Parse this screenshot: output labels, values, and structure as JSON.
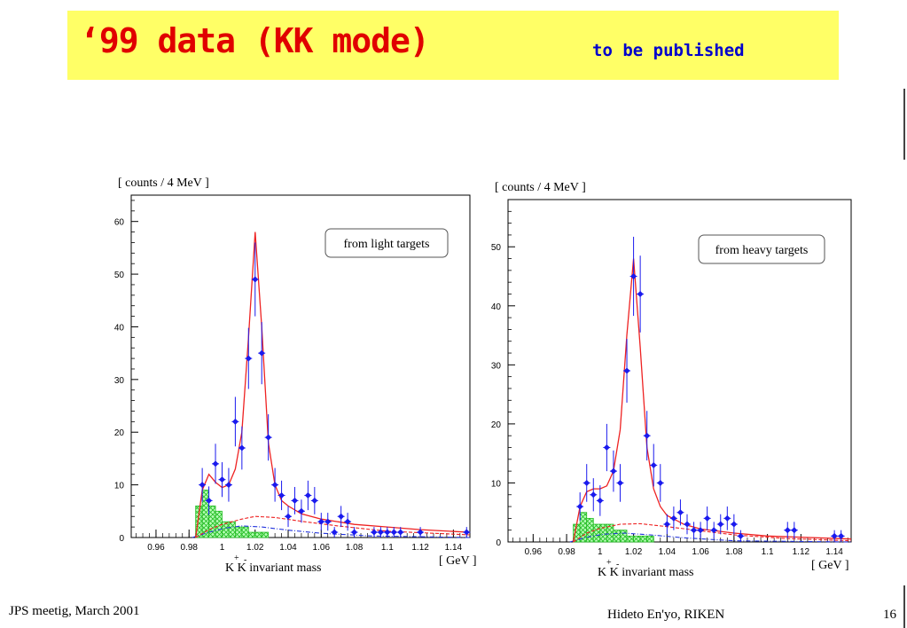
{
  "slide": {
    "title": "‘99 data (KK mode)",
    "subtitle": "to be published",
    "footer_left": "JPS meetig, March 2001",
    "footer_center": "Hideto En'yo, RIKEN",
    "page_number": "16"
  },
  "chart_data": [
    {
      "type": "scatter",
      "ylabel": "[ counts / 4 MeV ]",
      "xlabel": "K+K- invariant mass",
      "xlabel_main": "K K invariant mass",
      "xlabel_sup_plus": "+",
      "xlabel_sup_minus": "-",
      "xunit": "[ GeV ]",
      "annotation": "from  light targets",
      "xlim": [
        0.945,
        1.15
      ],
      "ylim": [
        0,
        65
      ],
      "x_ticks": [
        "0.96",
        "0.98",
        "1",
        "1.02",
        "1.04",
        "1.06",
        "1.08",
        "1.1",
        "1.12",
        "1.14"
      ],
      "y_ticks": [
        "0",
        "10",
        "20",
        "30",
        "40",
        "50",
        "60"
      ],
      "points": [
        {
          "x": 0.988,
          "y": 10,
          "err": 3.2
        },
        {
          "x": 0.992,
          "y": 7,
          "err": 2.7
        },
        {
          "x": 0.996,
          "y": 14,
          "err": 3.8
        },
        {
          "x": 1.0,
          "y": 11,
          "err": 3.3
        },
        {
          "x": 1.004,
          "y": 10,
          "err": 3.2
        },
        {
          "x": 1.008,
          "y": 22,
          "err": 4.7
        },
        {
          "x": 1.012,
          "y": 17,
          "err": 4.1
        },
        {
          "x": 1.016,
          "y": 34,
          "err": 5.8
        },
        {
          "x": 1.02,
          "y": 49,
          "err": 7.0
        },
        {
          "x": 1.024,
          "y": 35,
          "err": 5.9
        },
        {
          "x": 1.028,
          "y": 19,
          "err": 4.4
        },
        {
          "x": 1.032,
          "y": 10,
          "err": 3.2
        },
        {
          "x": 1.036,
          "y": 8,
          "err": 2.8
        },
        {
          "x": 1.04,
          "y": 4,
          "err": 2.0
        },
        {
          "x": 1.044,
          "y": 7,
          "err": 2.6
        },
        {
          "x": 1.048,
          "y": 5,
          "err": 2.2
        },
        {
          "x": 1.052,
          "y": 8,
          "err": 2.8
        },
        {
          "x": 1.056,
          "y": 7,
          "err": 2.6
        },
        {
          "x": 1.06,
          "y": 3,
          "err": 1.7
        },
        {
          "x": 1.064,
          "y": 3,
          "err": 1.7
        },
        {
          "x": 1.068,
          "y": 1,
          "err": 1.0
        },
        {
          "x": 1.072,
          "y": 4,
          "err": 2.0
        },
        {
          "x": 1.076,
          "y": 3,
          "err": 1.7
        },
        {
          "x": 1.08,
          "y": 1,
          "err": 1.0
        },
        {
          "x": 1.092,
          "y": 1,
          "err": 1.0
        },
        {
          "x": 1.096,
          "y": 1,
          "err": 1.0
        },
        {
          "x": 1.1,
          "y": 1,
          "err": 1.0
        },
        {
          "x": 1.104,
          "y": 1,
          "err": 1.0
        },
        {
          "x": 1.108,
          "y": 1,
          "err": 1.0
        },
        {
          "x": 1.12,
          "y": 1,
          "err": 1.0
        },
        {
          "x": 1.148,
          "y": 1,
          "err": 1.0
        }
      ],
      "hist_background": [
        {
          "x0": 0.984,
          "x1": 0.988,
          "y": 6
        },
        {
          "x0": 0.988,
          "x1": 0.992,
          "y": 9
        },
        {
          "x0": 0.992,
          "x1": 0.996,
          "y": 6
        },
        {
          "x0": 0.996,
          "x1": 1.0,
          "y": 5
        },
        {
          "x0": 1.0,
          "x1": 1.004,
          "y": 3
        },
        {
          "x0": 1.004,
          "x1": 1.008,
          "y": 3
        },
        {
          "x0": 1.008,
          "x1": 1.012,
          "y": 2
        },
        {
          "x0": 1.012,
          "x1": 1.016,
          "y": 2
        },
        {
          "x0": 1.016,
          "x1": 1.02,
          "y": 1
        },
        {
          "x0": 1.02,
          "x1": 1.024,
          "y": 1
        },
        {
          "x0": 1.024,
          "x1": 1.028,
          "y": 1
        }
      ],
      "fit_total": [
        [
          0.984,
          0
        ],
        [
          0.988,
          9
        ],
        [
          0.992,
          12
        ],
        [
          0.996,
          10.5
        ],
        [
          1.0,
          9.5
        ],
        [
          1.004,
          10
        ],
        [
          1.008,
          13
        ],
        [
          1.012,
          20
        ],
        [
          1.016,
          38
        ],
        [
          1.02,
          58
        ],
        [
          1.024,
          40
        ],
        [
          1.028,
          18
        ],
        [
          1.032,
          10
        ],
        [
          1.036,
          7
        ],
        [
          1.04,
          6
        ],
        [
          1.048,
          4.5
        ],
        [
          1.06,
          3.5
        ],
        [
          1.08,
          2.5
        ],
        [
          1.1,
          2
        ],
        [
          1.12,
          1.5
        ],
        [
          1.15,
          1
        ]
      ],
      "fit_bkg_red": [
        [
          0.984,
          0
        ],
        [
          0.992,
          1.5
        ],
        [
          1.0,
          2.5
        ],
        [
          1.012,
          3.5
        ],
        [
          1.02,
          4
        ],
        [
          1.032,
          3.8
        ],
        [
          1.05,
          3
        ],
        [
          1.07,
          2.2
        ],
        [
          1.1,
          1.2
        ],
        [
          1.15,
          0.5
        ]
      ],
      "fit_bkg_blue": [
        [
          0.982,
          0
        ],
        [
          0.992,
          1.0
        ],
        [
          1.002,
          1.8
        ],
        [
          1.012,
          2.2
        ],
        [
          1.024,
          2.0
        ],
        [
          1.04,
          1.4
        ],
        [
          1.06,
          0.8
        ],
        [
          1.09,
          0.3
        ],
        [
          1.15,
          0
        ]
      ]
    },
    {
      "type": "scatter",
      "ylabel": "[ counts / 4 MeV ]",
      "xlabel": "K+K- invariant mass",
      "xlabel_main": "K K invariant mass",
      "xlabel_sup_plus": "+",
      "xlabel_sup_minus": "-",
      "xunit": "[ GeV ]",
      "annotation": "from  heavy targets",
      "xlim": [
        0.945,
        1.15
      ],
      "ylim": [
        0,
        58
      ],
      "x_ticks": [
        "0.96",
        "0.98",
        "1",
        "1.02",
        "1.04",
        "1.06",
        "1.08",
        "1.1",
        "1.12",
        "1.14"
      ],
      "y_ticks": [
        "0",
        "10",
        "20",
        "30",
        "40",
        "50"
      ],
      "points": [
        {
          "x": 0.988,
          "y": 6,
          "err": 2.4
        },
        {
          "x": 0.992,
          "y": 10,
          "err": 3.2
        },
        {
          "x": 0.996,
          "y": 8,
          "err": 2.8
        },
        {
          "x": 1.0,
          "y": 7,
          "err": 2.6
        },
        {
          "x": 1.004,
          "y": 16,
          "err": 4.0
        },
        {
          "x": 1.008,
          "y": 12,
          "err": 3.5
        },
        {
          "x": 1.012,
          "y": 10,
          "err": 3.2
        },
        {
          "x": 1.016,
          "y": 29,
          "err": 5.4
        },
        {
          "x": 1.02,
          "y": 45,
          "err": 6.7
        },
        {
          "x": 1.024,
          "y": 42,
          "err": 6.5
        },
        {
          "x": 1.028,
          "y": 18,
          "err": 4.2
        },
        {
          "x": 1.032,
          "y": 13,
          "err": 3.6
        },
        {
          "x": 1.036,
          "y": 10,
          "err": 3.2
        },
        {
          "x": 1.04,
          "y": 3,
          "err": 1.7
        },
        {
          "x": 1.044,
          "y": 4,
          "err": 2.0
        },
        {
          "x": 1.048,
          "y": 5,
          "err": 2.2
        },
        {
          "x": 1.052,
          "y": 3,
          "err": 1.7
        },
        {
          "x": 1.056,
          "y": 2,
          "err": 1.4
        },
        {
          "x": 1.06,
          "y": 2,
          "err": 1.4
        },
        {
          "x": 1.064,
          "y": 4,
          "err": 2.0
        },
        {
          "x": 1.068,
          "y": 2,
          "err": 1.4
        },
        {
          "x": 1.072,
          "y": 3,
          "err": 1.7
        },
        {
          "x": 1.076,
          "y": 4,
          "err": 2.0
        },
        {
          "x": 1.08,
          "y": 3,
          "err": 1.7
        },
        {
          "x": 1.084,
          "y": 1,
          "err": 1.0
        },
        {
          "x": 1.112,
          "y": 2,
          "err": 1.4
        },
        {
          "x": 1.116,
          "y": 2,
          "err": 1.4
        },
        {
          "x": 1.14,
          "y": 1,
          "err": 1.0
        },
        {
          "x": 1.144,
          "y": 1,
          "err": 1.0
        }
      ],
      "hist_background": [
        {
          "x0": 0.984,
          "x1": 0.988,
          "y": 3
        },
        {
          "x0": 0.988,
          "x1": 0.992,
          "y": 5
        },
        {
          "x0": 0.992,
          "x1": 0.996,
          "y": 4
        },
        {
          "x0": 0.996,
          "x1": 1.0,
          "y": 3
        },
        {
          "x0": 1.0,
          "x1": 1.004,
          "y": 3
        },
        {
          "x0": 1.004,
          "x1": 1.008,
          "y": 3
        },
        {
          "x0": 1.008,
          "x1": 1.012,
          "y": 2
        },
        {
          "x0": 1.012,
          "x1": 1.016,
          "y": 2
        },
        {
          "x0": 1.016,
          "x1": 1.02,
          "y": 1
        },
        {
          "x0": 1.02,
          "x1": 1.024,
          "y": 1
        },
        {
          "x0": 1.024,
          "x1": 1.028,
          "y": 1
        },
        {
          "x0": 1.028,
          "x1": 1.032,
          "y": 1
        }
      ],
      "fit_total": [
        [
          0.984,
          0
        ],
        [
          0.988,
          6
        ],
        [
          0.992,
          8.5
        ],
        [
          0.996,
          9
        ],
        [
          1.0,
          9
        ],
        [
          1.004,
          9.5
        ],
        [
          1.008,
          12
        ],
        [
          1.012,
          19
        ],
        [
          1.016,
          35
        ],
        [
          1.02,
          48
        ],
        [
          1.024,
          33
        ],
        [
          1.028,
          16
        ],
        [
          1.032,
          9
        ],
        [
          1.036,
          6
        ],
        [
          1.04,
          4.5
        ],
        [
          1.05,
          3
        ],
        [
          1.06,
          2.2
        ],
        [
          1.08,
          1.5
        ],
        [
          1.1,
          1
        ],
        [
          1.15,
          0.5
        ]
      ],
      "fit_bkg_red": [
        [
          0.984,
          0
        ],
        [
          0.992,
          1.5
        ],
        [
          1.0,
          2.3
        ],
        [
          1.012,
          3.0
        ],
        [
          1.024,
          3.1
        ],
        [
          1.04,
          2.6
        ],
        [
          1.06,
          1.9
        ],
        [
          1.08,
          1.2
        ],
        [
          1.11,
          0.6
        ],
        [
          1.15,
          0.2
        ]
      ],
      "fit_bkg_blue": [
        [
          0.982,
          0
        ],
        [
          0.992,
          0.8
        ],
        [
          1.002,
          1.3
        ],
        [
          1.014,
          1.5
        ],
        [
          1.03,
          1.2
        ],
        [
          1.05,
          0.7
        ],
        [
          1.08,
          0.2
        ],
        [
          1.15,
          0
        ]
      ]
    }
  ]
}
